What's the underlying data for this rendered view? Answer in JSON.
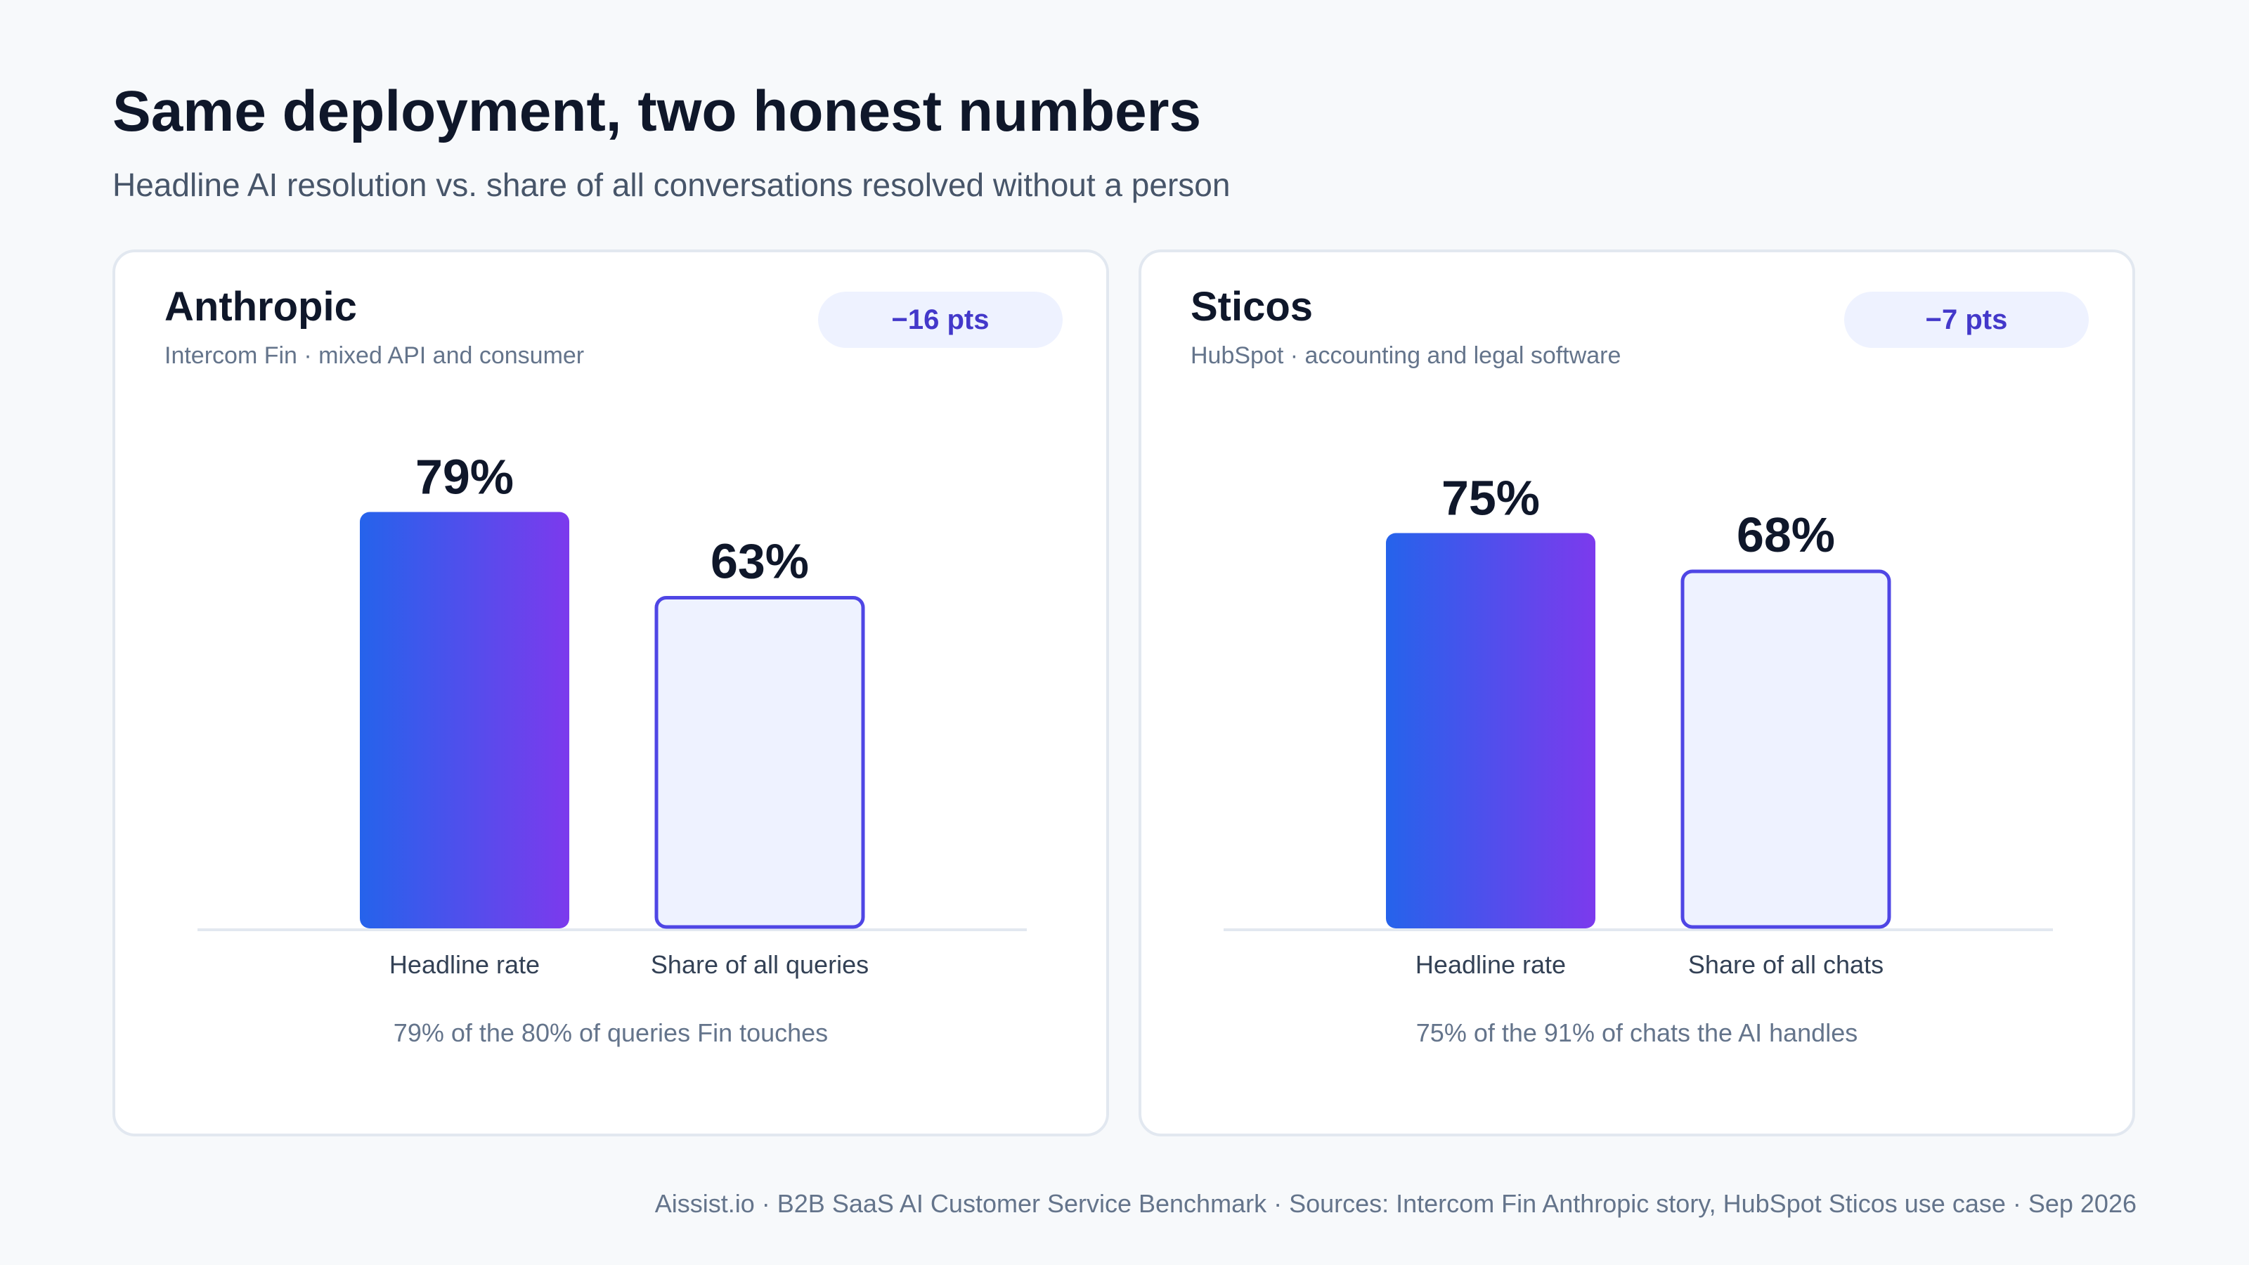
{
  "title": "Same deployment, two honest numbers",
  "subtitle": "Headline AI resolution vs. share of all conversations resolved without a person",
  "colors": {
    "gradient_start": "#2563eb",
    "gradient_end": "#7c3aed",
    "outline_bar_fill": "#eef2ff",
    "outline_bar_stroke": "#4f46e5",
    "badge_text": "#4338ca",
    "badge_bg": "#eef2ff"
  },
  "panels": [
    {
      "name": "Anthropic",
      "subtitle": "Intercom Fin · mixed API and consumer",
      "badge": "−16 pts",
      "note": "79% of the 80% of queries Fin touches"
    },
    {
      "name": "Sticos",
      "subtitle": "HubSpot · accounting and legal software",
      "badge": "−7 pts",
      "note": "75% of the 91% of chats the AI handles"
    }
  ],
  "chart_data": [
    {
      "type": "bar",
      "categories": [
        "Headline rate",
        "Share of all queries"
      ],
      "values": [
        79,
        63
      ],
      "value_labels": [
        "79%",
        "63%"
      ],
      "ylim": [
        0,
        100
      ],
      "grid": false
    },
    {
      "type": "bar",
      "categories": [
        "Headline rate",
        "Share of all chats"
      ],
      "values": [
        75,
        68
      ],
      "value_labels": [
        "75%",
        "68%"
      ],
      "ylim": [
        0,
        100
      ],
      "grid": false
    }
  ],
  "footer": "Aissist.io · B2B SaaS AI Customer Service Benchmark · Sources: Intercom Fin Anthropic story, HubSpot Sticos use case · Sep 2026"
}
